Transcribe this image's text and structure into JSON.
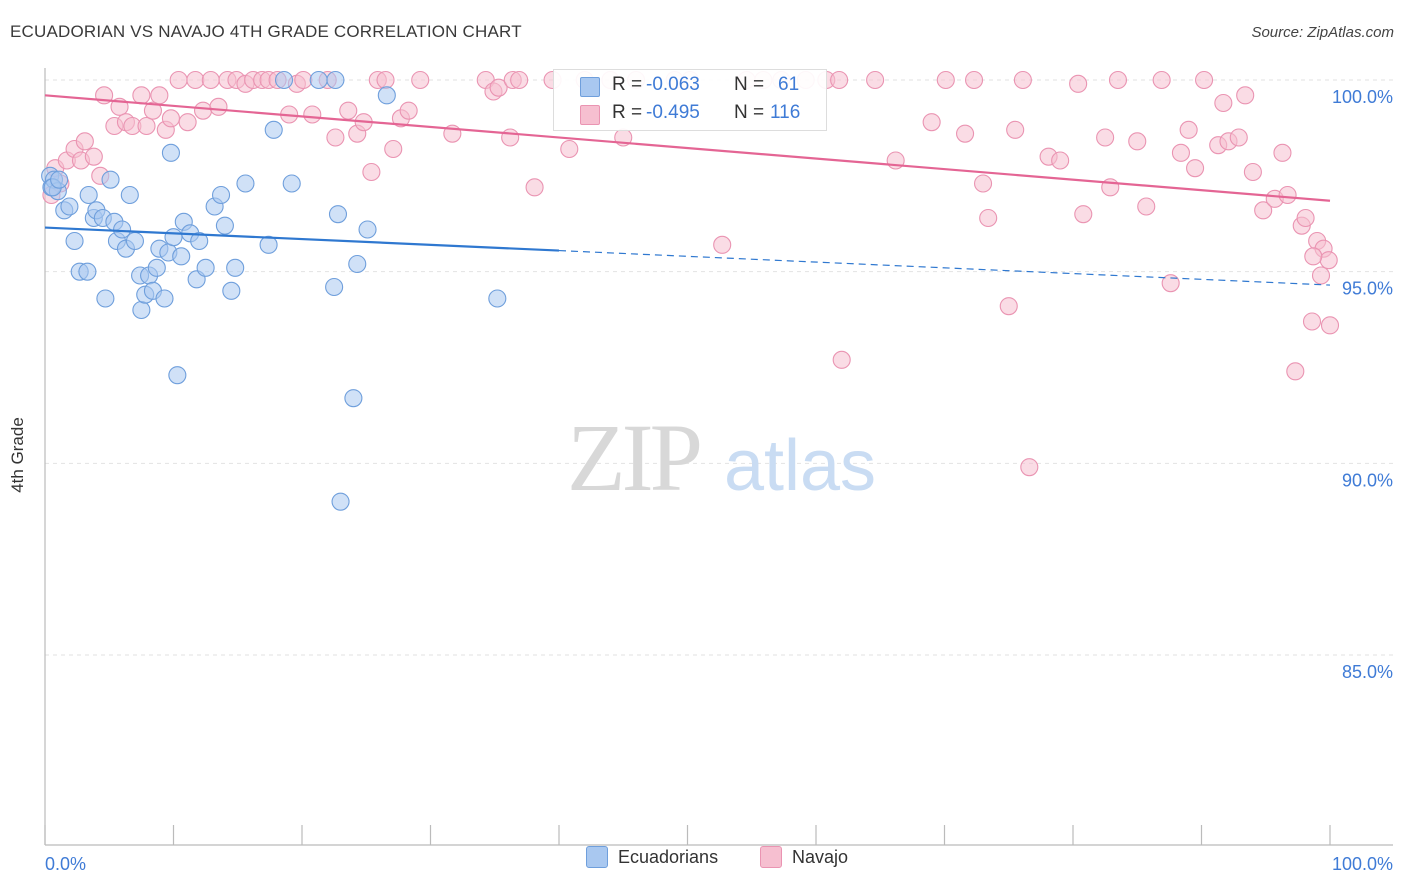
{
  "title": "ECUADORIAN VS NAVAJO 4TH GRADE CORRELATION CHART",
  "source": "Source: ZipAtlas.com",
  "watermark": {
    "zip": "ZIP",
    "atlas": "atlas"
  },
  "colors": {
    "blue_fill": "#a9c8f0",
    "blue_stroke": "#6f9fdc",
    "blue_line": "#2f78d0",
    "pink_fill": "#f6bfd0",
    "pink_stroke": "#ea94b2",
    "pink_line": "#e46594",
    "tick_text": "#3f7bd6",
    "grid": "#e2e2e2"
  },
  "stats": {
    "r_label": "R =",
    "n_label": "N =",
    "blue": {
      "r": "-0.063",
      "n": "61"
    },
    "pink": {
      "r": "-0.495",
      "n": "116"
    }
  },
  "legend": {
    "blue": "Ecuadorians",
    "pink": "Navajo"
  },
  "chart_data": {
    "type": "scatter",
    "title": "ECUADORIAN VS NAVAJO 4TH GRADE CORRELATION CHART",
    "xlabel": "",
    "ylabel": "4th Grade",
    "xlim": [
      0,
      100
    ],
    "ylim": [
      80.5,
      100.8
    ],
    "x_tick_labels": [
      "0.0%",
      "100.0%"
    ],
    "y_ticks": [
      85,
      90,
      95,
      100
    ],
    "y_tick_labels": [
      "85.0%",
      "90.0%",
      "95.0%",
      "100.0%"
    ],
    "grid": true,
    "legend_position": "bottom-center",
    "series": [
      {
        "name": "Ecuadorians",
        "color": "#a9c8f0",
        "trend": {
          "x0": 0,
          "y0": 96.15,
          "x1": 40,
          "y1": 95.55,
          "dash_to": 100,
          "dash_y": 94.65
        },
        "points": [
          [
            0.4,
            97.5
          ],
          [
            0.5,
            97.2
          ],
          [
            0.7,
            97.4
          ],
          [
            1.0,
            97.1
          ],
          [
            1.5,
            96.6
          ],
          [
            1.9,
            96.7
          ],
          [
            2.3,
            95.8
          ],
          [
            2.7,
            95.0
          ],
          [
            3.3,
            95.0
          ],
          [
            3.4,
            97.0
          ],
          [
            3.8,
            96.4
          ],
          [
            4.0,
            96.6
          ],
          [
            4.5,
            96.4
          ],
          [
            4.7,
            94.3
          ],
          [
            5.1,
            97.4
          ],
          [
            5.4,
            96.3
          ],
          [
            5.6,
            95.8
          ],
          [
            6.0,
            96.1
          ],
          [
            6.3,
            95.6
          ],
          [
            6.6,
            97.0
          ],
          [
            7.0,
            95.8
          ],
          [
            7.4,
            94.9
          ],
          [
            7.5,
            94.0
          ],
          [
            7.8,
            94.4
          ],
          [
            8.1,
            94.9
          ],
          [
            8.4,
            94.5
          ],
          [
            8.7,
            95.1
          ],
          [
            8.9,
            95.6
          ],
          [
            9.3,
            94.3
          ],
          [
            9.6,
            95.5
          ],
          [
            9.8,
            98.1
          ],
          [
            10.0,
            95.9
          ],
          [
            10.3,
            92.3
          ],
          [
            10.6,
            95.4
          ],
          [
            10.8,
            96.3
          ],
          [
            11.3,
            96.0
          ],
          [
            11.8,
            94.8
          ],
          [
            12.0,
            95.8
          ],
          [
            12.5,
            95.1
          ],
          [
            13.2,
            96.7
          ],
          [
            13.7,
            97.0
          ],
          [
            14.0,
            96.2
          ],
          [
            14.5,
            94.5
          ],
          [
            14.8,
            95.1
          ],
          [
            15.6,
            97.3
          ],
          [
            17.4,
            95.7
          ],
          [
            17.8,
            98.7
          ],
          [
            18.6,
            100.0
          ],
          [
            19.2,
            97.3
          ],
          [
            21.3,
            100.0
          ],
          [
            22.5,
            94.6
          ],
          [
            22.6,
            100.0
          ],
          [
            22.8,
            96.5
          ],
          [
            23.0,
            89.0
          ],
          [
            24.0,
            91.7
          ],
          [
            24.3,
            95.2
          ],
          [
            25.1,
            96.1
          ],
          [
            26.6,
            99.6
          ],
          [
            35.2,
            94.3
          ],
          [
            0.6,
            97.2
          ],
          [
            1.1,
            97.4
          ]
        ]
      },
      {
        "name": "Navajo",
        "color": "#f6bfd0",
        "trend": {
          "x0": 0,
          "y0": 99.6,
          "x1": 100,
          "y1": 96.85
        },
        "points": [
          [
            0.5,
            97.0
          ],
          [
            0.8,
            97.7
          ],
          [
            1.2,
            97.3
          ],
          [
            1.7,
            97.9
          ],
          [
            2.3,
            98.2
          ],
          [
            2.8,
            97.9
          ],
          [
            3.1,
            98.4
          ],
          [
            3.8,
            98.0
          ],
          [
            4.3,
            97.5
          ],
          [
            4.6,
            99.6
          ],
          [
            5.4,
            98.8
          ],
          [
            5.8,
            99.3
          ],
          [
            6.3,
            98.9
          ],
          [
            6.8,
            98.8
          ],
          [
            7.5,
            99.6
          ],
          [
            7.9,
            98.8
          ],
          [
            8.4,
            99.2
          ],
          [
            8.9,
            99.6
          ],
          [
            9.4,
            98.7
          ],
          [
            9.8,
            99.0
          ],
          [
            10.4,
            100.0
          ],
          [
            11.1,
            98.9
          ],
          [
            11.7,
            100.0
          ],
          [
            12.3,
            99.2
          ],
          [
            12.9,
            100.0
          ],
          [
            13.5,
            99.3
          ],
          [
            14.2,
            100.0
          ],
          [
            14.9,
            100.0
          ],
          [
            15.6,
            99.9
          ],
          [
            16.2,
            100.0
          ],
          [
            16.9,
            100.0
          ],
          [
            17.4,
            100.0
          ],
          [
            18.1,
            100.0
          ],
          [
            19.0,
            99.1
          ],
          [
            19.6,
            99.9
          ],
          [
            20.1,
            100.0
          ],
          [
            20.8,
            99.1
          ],
          [
            22.0,
            100.0
          ],
          [
            22.6,
            98.5
          ],
          [
            23.6,
            99.2
          ],
          [
            24.3,
            98.6
          ],
          [
            24.8,
            98.9
          ],
          [
            25.4,
            97.6
          ],
          [
            25.9,
            100.0
          ],
          [
            26.5,
            100.0
          ],
          [
            27.1,
            98.2
          ],
          [
            27.7,
            99.0
          ],
          [
            28.3,
            99.2
          ],
          [
            29.2,
            100.0
          ],
          [
            31.7,
            98.6
          ],
          [
            34.3,
            100.0
          ],
          [
            34.9,
            99.7
          ],
          [
            35.3,
            99.8
          ],
          [
            36.2,
            98.5
          ],
          [
            36.4,
            100.0
          ],
          [
            36.9,
            100.0
          ],
          [
            38.1,
            97.2
          ],
          [
            39.5,
            100.0
          ],
          [
            40.8,
            98.2
          ],
          [
            42.0,
            100.0
          ],
          [
            44.0,
            100.0
          ],
          [
            45.0,
            98.5
          ],
          [
            46.0,
            100.0
          ],
          [
            49.0,
            100.0
          ],
          [
            50.2,
            100.0
          ],
          [
            52.7,
            95.7
          ],
          [
            54.6,
            100.0
          ],
          [
            55.9,
            100.0
          ],
          [
            57.3,
            100.0
          ],
          [
            59.2,
            100.0
          ],
          [
            60.8,
            100.0
          ],
          [
            61.8,
            100.0
          ],
          [
            62.0,
            92.7
          ],
          [
            64.6,
            100.0
          ],
          [
            66.2,
            97.9
          ],
          [
            69.0,
            98.9
          ],
          [
            70.1,
            100.0
          ],
          [
            71.6,
            98.6
          ],
          [
            72.3,
            100.0
          ],
          [
            73.0,
            97.3
          ],
          [
            73.4,
            96.4
          ],
          [
            75.0,
            94.1
          ],
          [
            75.5,
            98.7
          ],
          [
            76.1,
            100.0
          ],
          [
            76.6,
            89.9
          ],
          [
            78.1,
            98.0
          ],
          [
            79.0,
            97.9
          ],
          [
            80.4,
            99.9
          ],
          [
            80.8,
            96.5
          ],
          [
            82.5,
            98.5
          ],
          [
            82.9,
            97.2
          ],
          [
            83.5,
            100.0
          ],
          [
            85.0,
            98.4
          ],
          [
            85.7,
            96.7
          ],
          [
            86.9,
            100.0
          ],
          [
            87.6,
            94.7
          ],
          [
            88.4,
            98.1
          ],
          [
            89.0,
            98.7
          ],
          [
            89.5,
            97.7
          ],
          [
            90.2,
            100.0
          ],
          [
            91.3,
            98.3
          ],
          [
            91.7,
            99.4
          ],
          [
            92.1,
            98.4
          ],
          [
            92.9,
            98.5
          ],
          [
            93.4,
            99.6
          ],
          [
            94.0,
            97.6
          ],
          [
            94.8,
            96.6
          ],
          [
            95.7,
            96.9
          ],
          [
            96.3,
            98.1
          ],
          [
            96.7,
            97.0
          ],
          [
            97.3,
            92.4
          ],
          [
            97.8,
            96.2
          ],
          [
            98.1,
            96.4
          ],
          [
            98.6,
            93.7
          ],
          [
            99.0,
            95.8
          ],
          [
            99.5,
            95.6
          ],
          [
            99.9,
            95.3
          ],
          [
            100.0,
            93.6
          ],
          [
            99.3,
            94.9
          ],
          [
            98.7,
            95.4
          ]
        ]
      }
    ]
  }
}
